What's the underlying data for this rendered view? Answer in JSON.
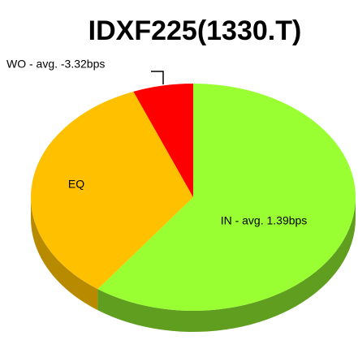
{
  "chart_data": {
    "type": "pie",
    "title": "IDXF225(1330.T)",
    "categories": [
      "IN - avg. 1.39bps",
      "EQ",
      "WO - avg. -3.32bps"
    ],
    "values": [
      60,
      34,
      6
    ],
    "colors": [
      "#99ff33",
      "#ffc000",
      "#ff0000"
    ],
    "side_colors": [
      "#5f9e1f",
      "#b88a00",
      "#b00000"
    ]
  }
}
